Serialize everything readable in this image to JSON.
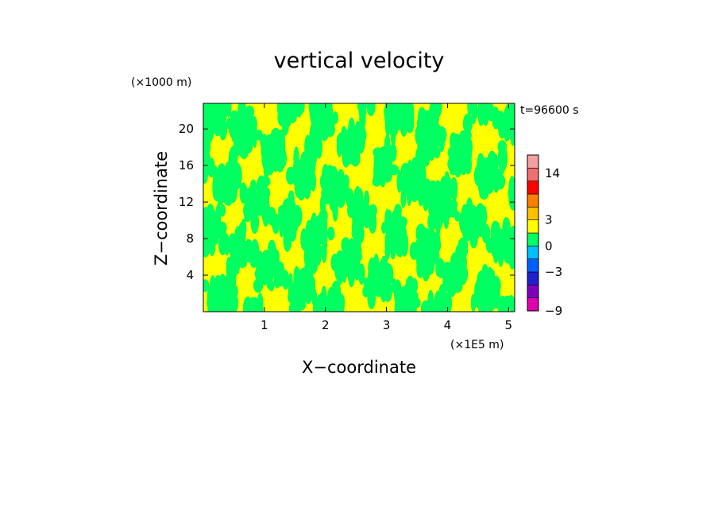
{
  "chart_data": {
    "type": "heatmap",
    "title": "vertical velocity",
    "xlabel": "X−coordinate",
    "ylabel": "Z−coordinate",
    "x_unit": "(×1E5 m)",
    "y_unit": "(×1000 m)",
    "time_label": "t=96600 s",
    "xlim": [
      0,
      5.1
    ],
    "ylim": [
      0,
      22.8
    ],
    "x_ticks": [
      {
        "value": 1,
        "label": "1"
      },
      {
        "value": 2,
        "label": "2"
      },
      {
        "value": 3,
        "label": "3"
      },
      {
        "value": 4,
        "label": "4"
      },
      {
        "value": 5,
        "label": "5"
      }
    ],
    "y_ticks": [
      {
        "value": 4,
        "label": "4"
      },
      {
        "value": 8,
        "label": "8"
      },
      {
        "value": 12,
        "label": "12"
      },
      {
        "value": 16,
        "label": "16"
      },
      {
        "value": 20,
        "label": "20"
      }
    ],
    "colorbar": {
      "levels": [
        {
          "color": "#e000b0"
        },
        {
          "color": "#8000c0"
        },
        {
          "color": "#2020d0"
        },
        {
          "color": "#0060ff"
        },
        {
          "color": "#00c0ff"
        },
        {
          "color": "#00ff60"
        },
        {
          "color": "#ffff00"
        },
        {
          "color": "#ffc000"
        },
        {
          "color": "#ff8000"
        },
        {
          "color": "#ff0000"
        },
        {
          "color": "#f07070"
        },
        {
          "color": "#f5a0a0"
        }
      ],
      "labels": [
        {
          "value": -9,
          "label": "−9"
        },
        {
          "value": -3,
          "label": "−3"
        },
        {
          "value": 0,
          "label": "0"
        },
        {
          "value": 3,
          "label": "3"
        },
        {
          "value": 14,
          "label": "14"
        }
      ]
    },
    "field_colors": {
      "positive": "#ffff00",
      "negative": "#00ff60"
    },
    "grid": false
  }
}
